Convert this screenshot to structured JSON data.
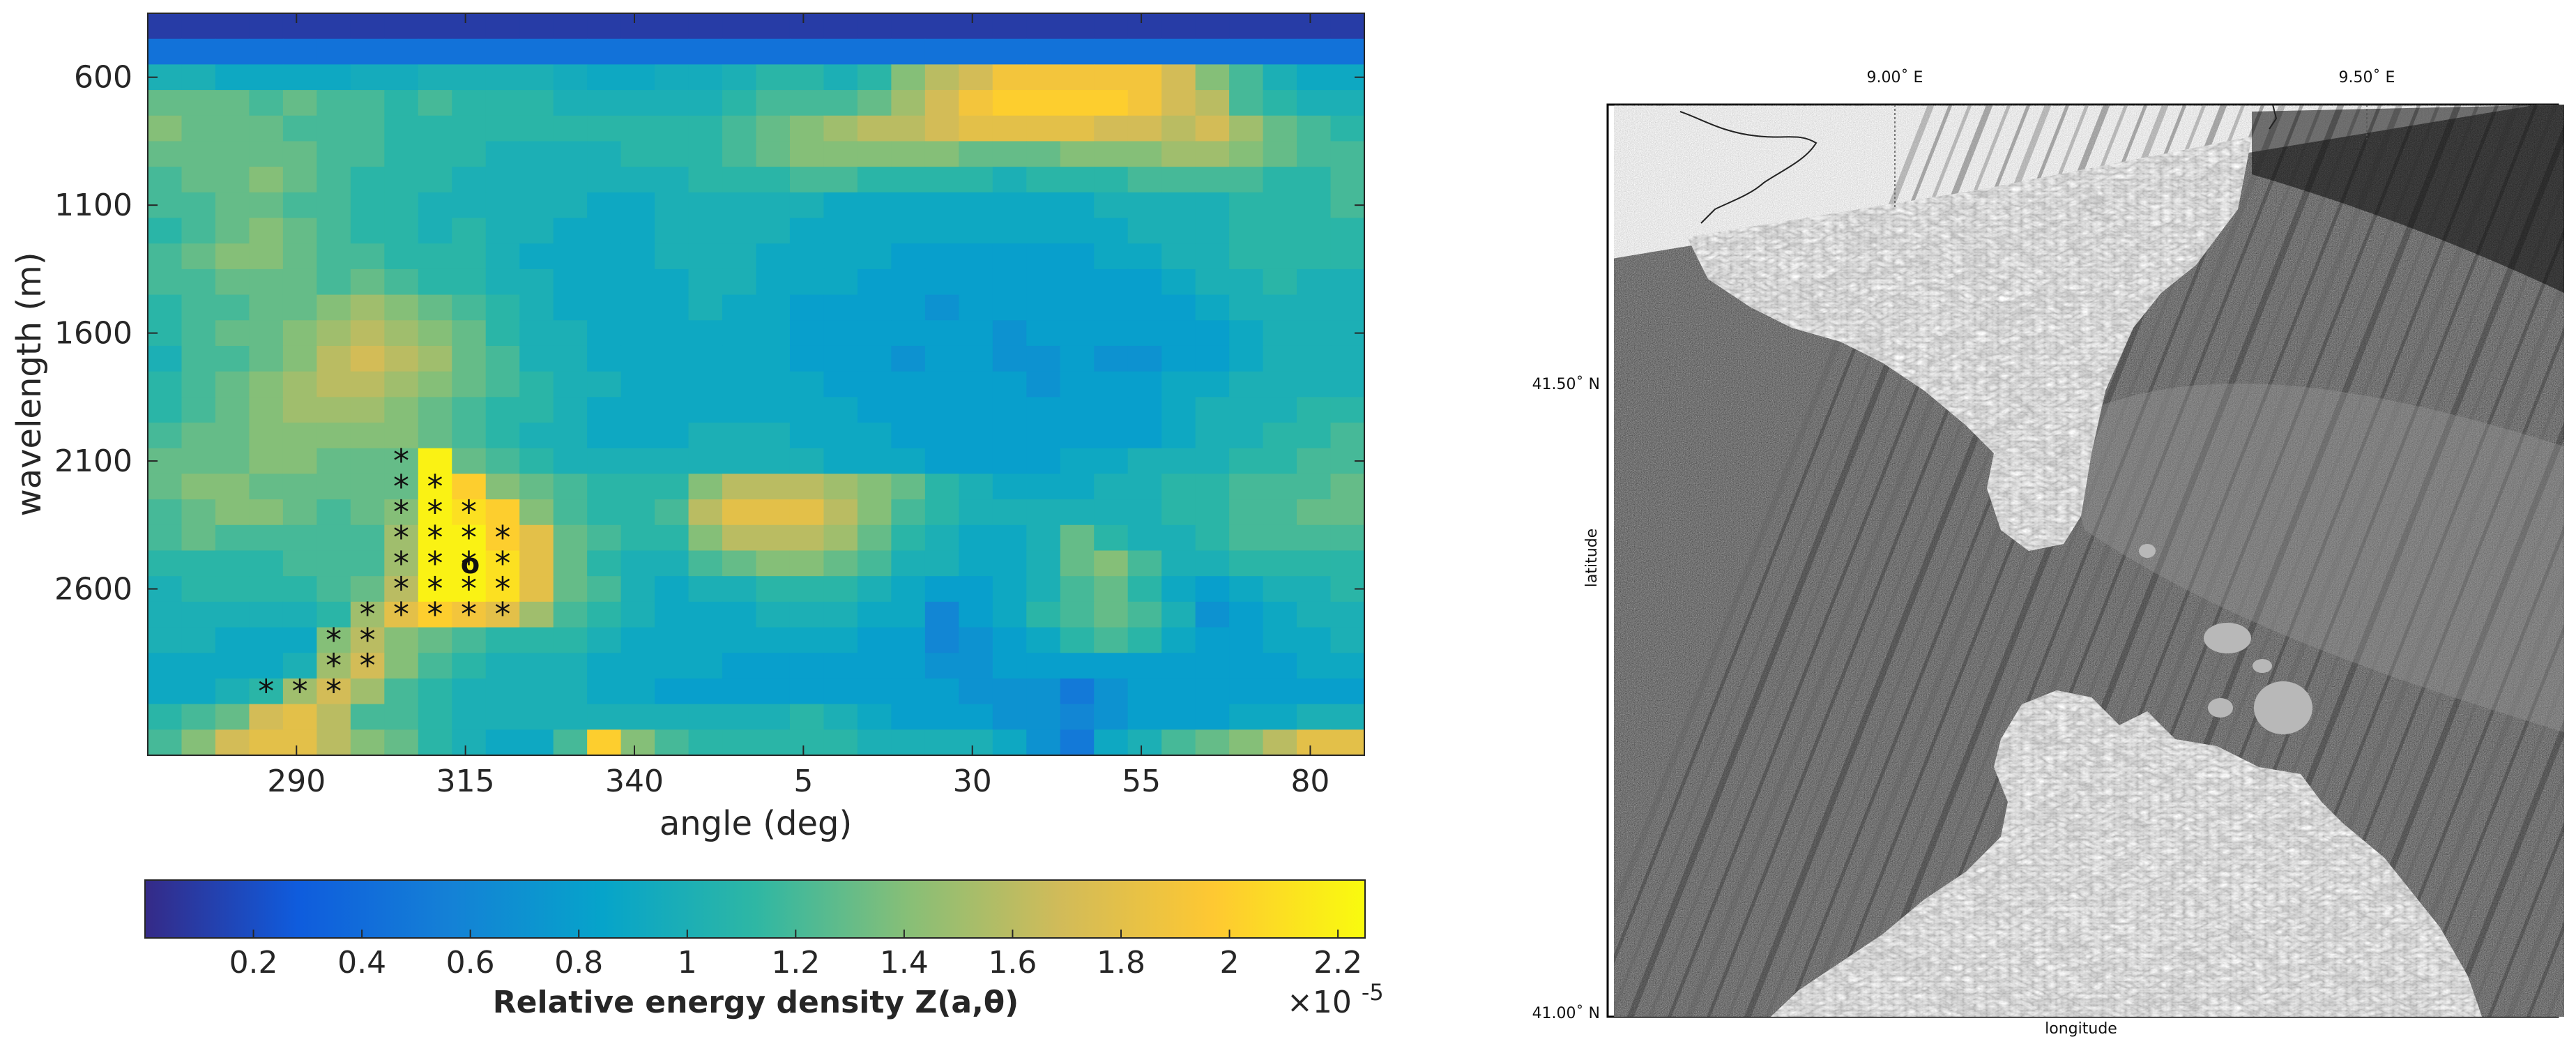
{
  "chart_data": [
    {
      "type": "heatmap",
      "xlabel": "angle (deg)",
      "ylabel": "wavelength (m)",
      "x_ticks": [
        "290",
        "315",
        "340",
        "5",
        "30",
        "55",
        "80"
      ],
      "y_ticks": [
        "600",
        "1100",
        "1600",
        "2100",
        "2600"
      ],
      "x_range_deg": [
        268,
        448
      ],
      "y_range_m": [
        350,
        3250
      ],
      "cols": 36,
      "rows": 29,
      "cells_rows_top_to_bottom": [
        [
          0.1,
          0.1,
          0.1,
          0.1,
          0.1,
          0.1,
          0.1,
          0.1,
          0.1,
          0.1,
          0.1,
          0.1,
          0.1,
          0.1,
          0.1,
          0.1,
          0.1,
          0.1,
          0.1,
          0.1,
          0.1,
          0.1,
          0.1,
          0.1,
          0.1,
          0.1,
          0.1,
          0.1,
          0.1,
          0.1,
          0.1,
          0.1,
          0.1,
          0.1,
          0.1,
          0.1
        ],
        [
          0.45,
          0.45,
          0.45,
          0.45,
          0.45,
          0.45,
          0.45,
          0.45,
          0.45,
          0.45,
          0.45,
          0.45,
          0.45,
          0.45,
          0.45,
          0.45,
          0.45,
          0.45,
          0.45,
          0.45,
          0.45,
          0.45,
          0.45,
          0.45,
          0.45,
          0.45,
          0.45,
          0.45,
          0.45,
          0.45,
          0.45,
          0.45,
          0.45,
          0.45,
          0.45,
          0.45
        ],
        [
          1.0,
          1.0,
          0.9,
          0.9,
          0.9,
          0.9,
          0.95,
          0.95,
          1.0,
          1.0,
          1.0,
          1.0,
          0.95,
          0.9,
          0.9,
          0.95,
          0.95,
          1.0,
          1.1,
          1.1,
          1.0,
          1.1,
          1.4,
          1.6,
          1.7,
          1.9,
          1.9,
          1.9,
          1.9,
          1.9,
          1.7,
          1.4,
          1.2,
          1.0,
          0.9,
          0.9
        ],
        [
          1.3,
          1.3,
          1.3,
          1.2,
          1.3,
          1.2,
          1.2,
          1.1,
          1.2,
          1.1,
          1.1,
          1.1,
          1.0,
          1.0,
          1.0,
          1.0,
          1.0,
          1.1,
          1.2,
          1.2,
          1.2,
          1.3,
          1.5,
          1.7,
          1.9,
          2.0,
          2.0,
          2.0,
          2.0,
          1.9,
          1.7,
          1.6,
          1.2,
          1.1,
          1.0,
          1.0
        ],
        [
          1.4,
          1.3,
          1.3,
          1.3,
          1.2,
          1.2,
          1.2,
          1.1,
          1.1,
          1.1,
          1.1,
          1.1,
          1.1,
          1.1,
          1.1,
          1.1,
          1.1,
          1.2,
          1.3,
          1.4,
          1.5,
          1.6,
          1.6,
          1.7,
          1.8,
          1.8,
          1.8,
          1.8,
          1.7,
          1.7,
          1.6,
          1.7,
          1.5,
          1.3,
          1.2,
          1.1
        ],
        [
          1.3,
          1.3,
          1.3,
          1.3,
          1.3,
          1.2,
          1.2,
          1.1,
          1.1,
          1.1,
          1.0,
          1.0,
          1.0,
          1.0,
          1.1,
          1.1,
          1.1,
          1.2,
          1.3,
          1.4,
          1.4,
          1.4,
          1.4,
          1.4,
          1.3,
          1.3,
          1.3,
          1.4,
          1.4,
          1.4,
          1.5,
          1.5,
          1.4,
          1.3,
          1.2,
          1.2
        ],
        [
          1.2,
          1.3,
          1.3,
          1.4,
          1.3,
          1.2,
          1.1,
          1.1,
          1.1,
          1.0,
          1.0,
          1.0,
          1.0,
          1.0,
          1.0,
          1.0,
          1.1,
          1.1,
          1.1,
          1.2,
          1.2,
          1.1,
          1.1,
          1.1,
          1.1,
          1.0,
          1.1,
          1.1,
          1.1,
          1.2,
          1.2,
          1.2,
          1.2,
          1.1,
          1.1,
          1.2
        ],
        [
          1.2,
          1.2,
          1.3,
          1.3,
          1.2,
          1.2,
          1.1,
          1.1,
          1.0,
          1.0,
          1.0,
          1.0,
          1.0,
          0.9,
          0.9,
          1.0,
          1.0,
          1.0,
          1.0,
          1.0,
          0.9,
          0.9,
          0.9,
          0.9,
          0.9,
          0.9,
          0.9,
          0.9,
          1.0,
          1.0,
          1.0,
          1.0,
          1.1,
          1.1,
          1.1,
          1.2
        ],
        [
          1.1,
          1.2,
          1.3,
          1.4,
          1.3,
          1.2,
          1.1,
          1.1,
          1.0,
          1.1,
          1.0,
          1.0,
          0.9,
          0.9,
          0.9,
          1.0,
          1.0,
          1.0,
          1.0,
          0.9,
          0.9,
          0.9,
          0.9,
          0.9,
          0.9,
          0.9,
          0.9,
          0.9,
          0.9,
          1.0,
          1.0,
          1.0,
          1.1,
          1.1,
          1.1,
          1.1
        ],
        [
          1.2,
          1.3,
          1.4,
          1.4,
          1.3,
          1.2,
          1.2,
          1.1,
          1.1,
          1.1,
          1.0,
          0.9,
          0.9,
          0.9,
          0.9,
          1.0,
          1.0,
          1.0,
          0.9,
          0.9,
          0.9,
          0.9,
          0.8,
          0.8,
          0.8,
          0.8,
          0.8,
          0.8,
          0.9,
          0.9,
          1.0,
          1.0,
          1.1,
          1.1,
          1.1,
          1.1
        ],
        [
          1.2,
          1.2,
          1.3,
          1.3,
          1.3,
          1.2,
          1.3,
          1.2,
          1.1,
          1.1,
          1.0,
          1.0,
          0.9,
          0.9,
          0.9,
          0.9,
          1.0,
          1.0,
          0.9,
          0.9,
          0.9,
          0.8,
          0.8,
          0.8,
          0.8,
          0.8,
          0.8,
          0.8,
          0.8,
          0.8,
          0.9,
          1.0,
          1.0,
          1.1,
          1.0,
          1.0
        ],
        [
          1.1,
          1.2,
          1.2,
          1.3,
          1.3,
          1.4,
          1.5,
          1.4,
          1.3,
          1.2,
          1.1,
          1.0,
          0.9,
          0.9,
          0.9,
          0.9,
          1.0,
          0.9,
          0.9,
          0.8,
          0.8,
          0.8,
          0.8,
          0.7,
          0.8,
          0.8,
          0.8,
          0.8,
          0.8,
          0.8,
          0.8,
          0.9,
          1.0,
          1.0,
          1.0,
          1.0
        ],
        [
          1.1,
          1.2,
          1.3,
          1.3,
          1.4,
          1.5,
          1.6,
          1.5,
          1.4,
          1.3,
          1.1,
          1.0,
          1.0,
          0.9,
          0.9,
          0.9,
          0.9,
          0.9,
          0.9,
          0.8,
          0.8,
          0.8,
          0.8,
          0.8,
          0.8,
          0.7,
          0.8,
          0.8,
          0.8,
          0.8,
          0.8,
          0.8,
          0.9,
          1.0,
          1.0,
          1.0
        ],
        [
          1.0,
          1.2,
          1.2,
          1.3,
          1.4,
          1.6,
          1.7,
          1.6,
          1.5,
          1.3,
          1.2,
          1.0,
          1.0,
          0.9,
          0.9,
          0.9,
          0.9,
          0.9,
          0.9,
          0.8,
          0.8,
          0.8,
          0.7,
          0.8,
          0.8,
          0.7,
          0.7,
          0.8,
          0.7,
          0.7,
          0.8,
          0.8,
          0.9,
          1.0,
          1.0,
          1.0
        ],
        [
          1.1,
          1.2,
          1.3,
          1.4,
          1.5,
          1.6,
          1.6,
          1.5,
          1.4,
          1.3,
          1.2,
          1.1,
          1.0,
          1.0,
          0.9,
          0.9,
          0.9,
          0.9,
          0.9,
          0.9,
          0.8,
          0.8,
          0.8,
          0.8,
          0.8,
          0.8,
          0.7,
          0.8,
          0.8,
          0.8,
          0.9,
          0.9,
          1.0,
          1.0,
          1.0,
          1.0
        ],
        [
          1.1,
          1.2,
          1.3,
          1.4,
          1.5,
          1.5,
          1.5,
          1.4,
          1.3,
          1.2,
          1.1,
          1.1,
          1.0,
          0.9,
          0.9,
          0.9,
          0.9,
          0.9,
          0.9,
          0.9,
          0.9,
          0.8,
          0.8,
          0.8,
          0.8,
          0.8,
          0.8,
          0.8,
          0.8,
          0.8,
          0.9,
          1.0,
          1.0,
          1.0,
          1.1,
          1.1
        ],
        [
          1.2,
          1.3,
          1.3,
          1.4,
          1.4,
          1.4,
          1.4,
          1.4,
          1.3,
          1.2,
          1.1,
          1.0,
          1.0,
          0.9,
          0.9,
          0.9,
          1.0,
          1.0,
          1.0,
          0.9,
          0.9,
          0.9,
          0.8,
          0.8,
          0.8,
          0.8,
          0.8,
          0.8,
          0.8,
          0.8,
          0.9,
          1.0,
          1.0,
          1.1,
          1.1,
          1.2
        ],
        [
          1.3,
          1.3,
          1.3,
          1.4,
          1.4,
          1.3,
          1.3,
          1.3,
          2.2,
          1.3,
          1.2,
          1.1,
          1.0,
          1.0,
          1.0,
          1.0,
          1.0,
          1.0,
          1.0,
          1.0,
          0.9,
          0.9,
          0.9,
          0.8,
          0.8,
          0.8,
          0.8,
          0.9,
          0.9,
          1.0,
          1.0,
          1.0,
          1.1,
          1.1,
          1.2,
          1.2
        ],
        [
          1.3,
          1.4,
          1.4,
          1.3,
          1.3,
          1.3,
          1.3,
          1.3,
          2.2,
          2.0,
          1.4,
          1.3,
          1.2,
          1.1,
          1.1,
          1.1,
          1.4,
          1.6,
          1.6,
          1.6,
          1.5,
          1.4,
          1.3,
          1.1,
          1.0,
          0.9,
          0.9,
          0.9,
          1.0,
          1.0,
          1.1,
          1.1,
          1.2,
          1.2,
          1.2,
          1.3
        ],
        [
          1.2,
          1.3,
          1.4,
          1.4,
          1.3,
          1.2,
          1.3,
          1.4,
          2.2,
          2.1,
          2.0,
          1.4,
          1.2,
          1.1,
          1.1,
          1.2,
          1.6,
          1.8,
          1.8,
          1.8,
          1.6,
          1.4,
          1.2,
          1.1,
          1.0,
          1.0,
          1.0,
          1.0,
          1.0,
          1.0,
          1.1,
          1.1,
          1.2,
          1.2,
          1.3,
          1.3
        ],
        [
          1.2,
          1.3,
          1.2,
          1.2,
          1.2,
          1.2,
          1.2,
          1.5,
          2.2,
          2.2,
          2.0,
          1.8,
          1.3,
          1.2,
          1.1,
          1.1,
          1.4,
          1.6,
          1.6,
          1.6,
          1.5,
          1.3,
          1.1,
          1.0,
          0.9,
          0.9,
          1.0,
          1.3,
          1.1,
          1.0,
          1.0,
          1.1,
          1.2,
          1.2,
          1.2,
          1.2
        ],
        [
          1.1,
          1.1,
          1.1,
          1.1,
          1.2,
          1.2,
          1.2,
          1.5,
          2.2,
          2.2,
          2.1,
          1.8,
          1.3,
          1.1,
          1.0,
          1.0,
          1.2,
          1.3,
          1.4,
          1.4,
          1.3,
          1.2,
          1.0,
          1.0,
          0.9,
          0.9,
          1.0,
          1.3,
          1.4,
          1.2,
          1.0,
          1.0,
          1.1,
          1.1,
          1.1,
          1.1
        ],
        [
          1.0,
          1.1,
          1.1,
          1.1,
          1.1,
          1.2,
          1.3,
          1.6,
          2.2,
          2.2,
          2.1,
          1.8,
          1.3,
          1.2,
          1.0,
          0.9,
          1.0,
          1.0,
          1.1,
          1.1,
          1.1,
          1.0,
          0.9,
          0.8,
          0.8,
          0.9,
          1.0,
          1.2,
          1.3,
          1.1,
          0.9,
          0.8,
          0.9,
          1.0,
          1.0,
          1.1
        ],
        [
          1.0,
          1.0,
          1.0,
          1.0,
          1.0,
          1.1,
          1.5,
          1.8,
          2.0,
          1.9,
          1.8,
          1.5,
          1.2,
          1.1,
          1.0,
          0.9,
          0.9,
          0.9,
          1.0,
          1.0,
          1.0,
          0.9,
          0.9,
          0.6,
          0.8,
          0.9,
          1.1,
          1.2,
          1.3,
          1.2,
          1.0,
          0.7,
          0.8,
          0.9,
          1.0,
          1.0
        ],
        [
          1.0,
          1.0,
          0.9,
          0.9,
          0.9,
          1.4,
          1.6,
          1.4,
          1.3,
          1.2,
          1.1,
          1.1,
          1.1,
          1.0,
          0.9,
          0.9,
          0.9,
          0.9,
          0.9,
          0.9,
          0.9,
          0.8,
          0.8,
          0.6,
          0.7,
          0.8,
          0.9,
          1.1,
          1.2,
          1.1,
          0.9,
          0.8,
          0.8,
          0.9,
          0.9,
          1.0
        ],
        [
          0.9,
          0.9,
          0.9,
          0.9,
          1.0,
          1.5,
          1.7,
          1.4,
          1.2,
          1.1,
          1.0,
          1.0,
          1.0,
          0.9,
          0.9,
          0.9,
          0.9,
          0.8,
          0.8,
          0.8,
          0.8,
          0.8,
          0.8,
          0.7,
          0.7,
          0.8,
          0.8,
          0.8,
          0.8,
          0.8,
          0.8,
          0.8,
          0.8,
          0.8,
          0.9,
          0.9
        ],
        [
          0.9,
          0.9,
          1.0,
          1.1,
          1.5,
          1.7,
          1.5,
          1.2,
          1.1,
          1.0,
          1.0,
          1.0,
          1.0,
          0.9,
          0.9,
          0.8,
          0.8,
          0.8,
          0.8,
          0.8,
          0.8,
          0.8,
          0.8,
          0.8,
          0.7,
          0.7,
          0.7,
          0.5,
          0.7,
          0.8,
          0.8,
          0.8,
          0.8,
          0.8,
          0.8,
          0.8
        ],
        [
          1.1,
          1.2,
          1.3,
          1.7,
          1.8,
          1.6,
          1.2,
          1.2,
          1.1,
          1.0,
          1.0,
          1.0,
          1.0,
          1.0,
          1.0,
          1.0,
          1.0,
          1.0,
          1.0,
          1.1,
          1.0,
          0.9,
          0.8,
          0.8,
          0.8,
          0.7,
          0.7,
          0.6,
          0.7,
          0.8,
          0.8,
          0.8,
          0.9,
          0.9,
          1.0,
          1.0
        ],
        [
          1.2,
          1.4,
          1.7,
          1.8,
          1.8,
          1.6,
          1.4,
          1.3,
          1.1,
          1.0,
          0.9,
          0.9,
          1.2,
          2.0,
          1.4,
          1.2,
          1.1,
          1.1,
          1.1,
          1.1,
          1.1,
          1.0,
          1.0,
          1.0,
          1.0,
          0.9,
          0.7,
          0.5,
          0.9,
          1.0,
          1.2,
          1.3,
          1.4,
          1.6,
          1.8,
          1.8
        ]
      ],
      "significance_marker": "*",
      "significance_cells": [
        [
          17,
          7
        ],
        [
          18,
          7
        ],
        [
          18,
          8
        ],
        [
          19,
          7
        ],
        [
          19,
          8
        ],
        [
          19,
          9
        ],
        [
          20,
          7
        ],
        [
          20,
          8
        ],
        [
          20,
          9
        ],
        [
          20,
          10
        ],
        [
          21,
          7
        ],
        [
          21,
          8
        ],
        [
          21,
          9
        ],
        [
          21,
          10
        ],
        [
          22,
          7
        ],
        [
          22,
          8
        ],
        [
          22,
          9
        ],
        [
          22,
          10
        ],
        [
          23,
          6
        ],
        [
          23,
          7
        ],
        [
          23,
          8
        ],
        [
          23,
          9
        ],
        [
          23,
          10
        ],
        [
          24,
          5
        ],
        [
          24,
          6
        ],
        [
          25,
          5
        ],
        [
          25,
          6
        ],
        [
          26,
          3
        ],
        [
          26,
          4
        ],
        [
          26,
          5
        ]
      ],
      "peak_marker": "o",
      "peak_cell": [
        21,
        9
      ],
      "colorbar": {
        "title": "Relative energy density Z(a,θ)",
        "ticks": [
          "0.2",
          "0.4",
          "0.6",
          "0.8",
          "1",
          "1.2",
          "1.4",
          "1.6",
          "1.8",
          "2",
          "2.2"
        ],
        "range": [
          0,
          2.25
        ],
        "exponent_label": "×10",
        "exponent_power": "-5"
      }
    }
  ],
  "map": {
    "top_lon_labels": [
      "9.00˚ E",
      "9.50˚ E"
    ],
    "left_lat_labels": [
      "41.50˚ N",
      "41.00˚ N"
    ],
    "ylabel": "latitude",
    "xlabel": "longitude"
  },
  "colors": {
    "colormap": [
      "#352a87",
      "#0f5cdd",
      "#1481d6",
      "#06a4ca",
      "#2eb7a4",
      "#87bf77",
      "#d1bb59",
      "#fec832",
      "#f9fb0e"
    ],
    "axis": "#262626",
    "background": "#ffffff"
  }
}
